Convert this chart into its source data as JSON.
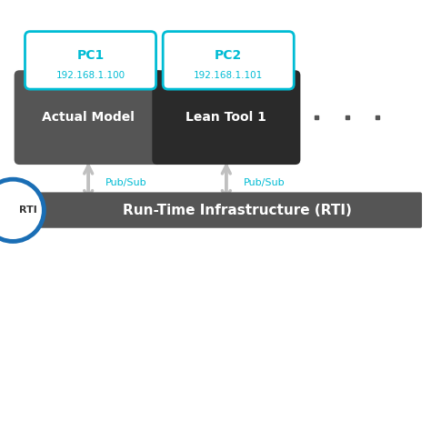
{
  "bg_color": "#ffffff",
  "pc1_label": "PC1",
  "pc1_ip": "192.168.1.100",
  "pc2_label": "PC2",
  "pc2_ip": "192.168.1.101",
  "box1_label": "Actual Model",
  "box2_label": "Lean Tool 1",
  "pubsub_label": "Pub/Sub",
  "rti_label": "Run-Time Infrastructure (RTI)",
  "rti_short": "RTI",
  "cyan_color": "#00bcd4",
  "dark_box1_color": "#555555",
  "dark_box2_color": "#2a2a2a",
  "rti_bar_color": "#555555",
  "arrow_color": "#c0c0c0",
  "blue_circle": "#1a6eb5",
  "dots_color": "#555555"
}
